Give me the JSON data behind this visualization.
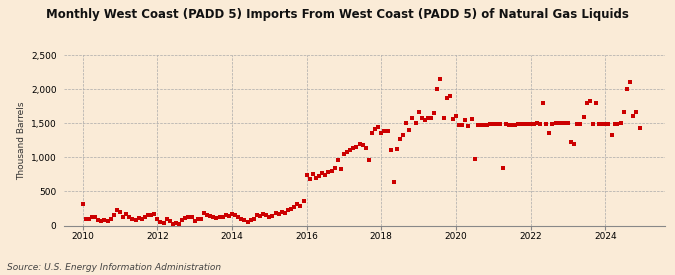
{
  "title": "Monthly West Coast (PADD 5) Imports From West Coast (PADD 5) of Natural Gas Liquids",
  "ylabel": "Thousand Barrels",
  "source": "Source: U.S. Energy Information Administration",
  "background_color": "#faebd7",
  "marker_color": "#cc0000",
  "ylim": [
    0,
    2500
  ],
  "yticks": [
    0,
    500,
    1000,
    1500,
    2000,
    2500
  ],
  "ytick_labels": [
    "0",
    "500",
    "1,000",
    "1,500",
    "2,000",
    "2,500"
  ],
  "xlim_start": 2009.5,
  "xlim_end": 2025.6,
  "xticks": [
    2010,
    2012,
    2014,
    2016,
    2018,
    2020,
    2022,
    2024
  ],
  "data": [
    [
      2010.0,
      310
    ],
    [
      2010.08,
      100
    ],
    [
      2010.17,
      90
    ],
    [
      2010.25,
      130
    ],
    [
      2010.33,
      120
    ],
    [
      2010.42,
      80
    ],
    [
      2010.5,
      70
    ],
    [
      2010.58,
      80
    ],
    [
      2010.67,
      60
    ],
    [
      2010.75,
      100
    ],
    [
      2010.83,
      150
    ],
    [
      2010.92,
      220
    ],
    [
      2011.0,
      200
    ],
    [
      2011.08,
      130
    ],
    [
      2011.17,
      170
    ],
    [
      2011.25,
      120
    ],
    [
      2011.33,
      100
    ],
    [
      2011.42,
      80
    ],
    [
      2011.5,
      110
    ],
    [
      2011.58,
      90
    ],
    [
      2011.67,
      130
    ],
    [
      2011.75,
      150
    ],
    [
      2011.83,
      160
    ],
    [
      2011.92,
      170
    ],
    [
      2012.0,
      100
    ],
    [
      2012.08,
      50
    ],
    [
      2012.17,
      30
    ],
    [
      2012.25,
      90
    ],
    [
      2012.33,
      70
    ],
    [
      2012.42,
      20
    ],
    [
      2012.5,
      30
    ],
    [
      2012.58,
      20
    ],
    [
      2012.67,
      80
    ],
    [
      2012.75,
      110
    ],
    [
      2012.83,
      120
    ],
    [
      2012.92,
      130
    ],
    [
      2013.0,
      60
    ],
    [
      2013.08,
      90
    ],
    [
      2013.17,
      100
    ],
    [
      2013.25,
      180
    ],
    [
      2013.33,
      160
    ],
    [
      2013.42,
      140
    ],
    [
      2013.5,
      120
    ],
    [
      2013.58,
      110
    ],
    [
      2013.67,
      130
    ],
    [
      2013.75,
      130
    ],
    [
      2013.83,
      150
    ],
    [
      2013.92,
      140
    ],
    [
      2014.0,
      170
    ],
    [
      2014.08,
      160
    ],
    [
      2014.17,
      120
    ],
    [
      2014.25,
      100
    ],
    [
      2014.33,
      80
    ],
    [
      2014.42,
      50
    ],
    [
      2014.5,
      80
    ],
    [
      2014.58,
      90
    ],
    [
      2014.67,
      150
    ],
    [
      2014.75,
      140
    ],
    [
      2014.83,
      170
    ],
    [
      2014.92,
      160
    ],
    [
      2015.0,
      130
    ],
    [
      2015.08,
      140
    ],
    [
      2015.17,
      180
    ],
    [
      2015.25,
      170
    ],
    [
      2015.33,
      200
    ],
    [
      2015.42,
      180
    ],
    [
      2015.5,
      220
    ],
    [
      2015.58,
      240
    ],
    [
      2015.67,
      270
    ],
    [
      2015.75,
      310
    ],
    [
      2015.83,
      290
    ],
    [
      2015.92,
      360
    ],
    [
      2016.0,
      740
    ],
    [
      2016.08,
      680
    ],
    [
      2016.17,
      750
    ],
    [
      2016.25,
      700
    ],
    [
      2016.33,
      720
    ],
    [
      2016.42,
      770
    ],
    [
      2016.5,
      740
    ],
    [
      2016.58,
      790
    ],
    [
      2016.67,
      800
    ],
    [
      2016.75,
      850
    ],
    [
      2016.83,
      960
    ],
    [
      2016.92,
      830
    ],
    [
      2017.0,
      1050
    ],
    [
      2017.08,
      1080
    ],
    [
      2017.17,
      1100
    ],
    [
      2017.25,
      1130
    ],
    [
      2017.33,
      1150
    ],
    [
      2017.42,
      1200
    ],
    [
      2017.5,
      1180
    ],
    [
      2017.58,
      1130
    ],
    [
      2017.67,
      960
    ],
    [
      2017.75,
      1350
    ],
    [
      2017.83,
      1420
    ],
    [
      2017.92,
      1440
    ],
    [
      2018.0,
      1360
    ],
    [
      2018.08,
      1380
    ],
    [
      2018.17,
      1380
    ],
    [
      2018.25,
      1110
    ],
    [
      2018.33,
      640
    ],
    [
      2018.42,
      1120
    ],
    [
      2018.5,
      1270
    ],
    [
      2018.58,
      1330
    ],
    [
      2018.67,
      1500
    ],
    [
      2018.75,
      1400
    ],
    [
      2018.83,
      1570
    ],
    [
      2018.92,
      1500
    ],
    [
      2019.0,
      1660
    ],
    [
      2019.08,
      1580
    ],
    [
      2019.17,
      1540
    ],
    [
      2019.25,
      1580
    ],
    [
      2019.33,
      1570
    ],
    [
      2019.42,
      1650
    ],
    [
      2019.5,
      2000
    ],
    [
      2019.58,
      2150
    ],
    [
      2019.67,
      1580
    ],
    [
      2019.75,
      1870
    ],
    [
      2019.83,
      1900
    ],
    [
      2019.92,
      1560
    ],
    [
      2020.0,
      1600
    ],
    [
      2020.08,
      1480
    ],
    [
      2020.17,
      1480
    ],
    [
      2020.25,
      1540
    ],
    [
      2020.33,
      1460
    ],
    [
      2020.42,
      1560
    ],
    [
      2020.5,
      970
    ],
    [
      2020.58,
      1480
    ],
    [
      2020.67,
      1480
    ],
    [
      2020.75,
      1470
    ],
    [
      2020.83,
      1470
    ],
    [
      2020.92,
      1490
    ],
    [
      2021.0,
      1490
    ],
    [
      2021.08,
      1490
    ],
    [
      2021.17,
      1490
    ],
    [
      2021.25,
      850
    ],
    [
      2021.33,
      1490
    ],
    [
      2021.42,
      1480
    ],
    [
      2021.5,
      1480
    ],
    [
      2021.58,
      1480
    ],
    [
      2021.67,
      1490
    ],
    [
      2021.75,
      1490
    ],
    [
      2021.83,
      1490
    ],
    [
      2021.92,
      1490
    ],
    [
      2022.0,
      1490
    ],
    [
      2022.08,
      1490
    ],
    [
      2022.17,
      1500
    ],
    [
      2022.25,
      1490
    ],
    [
      2022.33,
      1790
    ],
    [
      2022.42,
      1490
    ],
    [
      2022.5,
      1350
    ],
    [
      2022.58,
      1490
    ],
    [
      2022.67,
      1500
    ],
    [
      2022.75,
      1500
    ],
    [
      2022.83,
      1500
    ],
    [
      2022.92,
      1500
    ],
    [
      2023.0,
      1500
    ],
    [
      2023.08,
      1220
    ],
    [
      2023.17,
      1190
    ],
    [
      2023.25,
      1490
    ],
    [
      2023.33,
      1490
    ],
    [
      2023.42,
      1590
    ],
    [
      2023.5,
      1800
    ],
    [
      2023.58,
      1820
    ],
    [
      2023.67,
      1490
    ],
    [
      2023.75,
      1800
    ],
    [
      2023.83,
      1490
    ],
    [
      2023.92,
      1490
    ],
    [
      2024.0,
      1490
    ],
    [
      2024.08,
      1490
    ],
    [
      2024.17,
      1330
    ],
    [
      2024.25,
      1490
    ],
    [
      2024.33,
      1490
    ],
    [
      2024.42,
      1500
    ],
    [
      2024.5,
      1660
    ],
    [
      2024.58,
      2000
    ],
    [
      2024.67,
      2110
    ],
    [
      2024.75,
      1600
    ],
    [
      2024.83,
      1660
    ],
    [
      2024.92,
      1430
    ]
  ]
}
